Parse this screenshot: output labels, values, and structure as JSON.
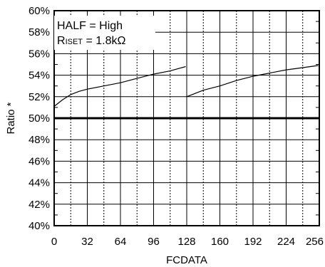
{
  "chart_data": {
    "type": "line",
    "xlabel": "FCDATA",
    "ylabel": "Ratio *",
    "xlim": [
      0,
      256
    ],
    "ylim": [
      40,
      60
    ],
    "x_ticks": [
      0,
      32,
      64,
      96,
      128,
      160,
      192,
      224,
      256
    ],
    "x_tick_labels": [
      "0",
      "32",
      "64",
      "96",
      "128",
      "160",
      "192",
      "224",
      "256"
    ],
    "x_minor_step": 16,
    "y_ticks": [
      40,
      42,
      44,
      46,
      48,
      50,
      52,
      54,
      56,
      58,
      60
    ],
    "y_tick_labels": [
      "40%",
      "42%",
      "44%",
      "46%",
      "48%",
      "50%",
      "52%",
      "54%",
      "56%",
      "58%",
      "60%"
    ],
    "y_minor_step": 1,
    "grid": true,
    "annotation": {
      "line1": "HALF = High",
      "line2_main": "R",
      "line2_sub": "ISET",
      "line2_rest": " = 1.8kΩ"
    },
    "reference_line": {
      "y": 50
    },
    "series": [
      {
        "points": [
          [
            0,
            51.1
          ],
          [
            8,
            51.7
          ],
          [
            16,
            52.2
          ],
          [
            24,
            52.5
          ],
          [
            32,
            52.7
          ],
          [
            48,
            53.0
          ],
          [
            64,
            53.3
          ],
          [
            80,
            53.7
          ],
          [
            96,
            54.1
          ],
          [
            112,
            54.4
          ],
          [
            127,
            54.8
          ]
        ]
      },
      {
        "points": [
          [
            128,
            52.0
          ],
          [
            144,
            52.6
          ],
          [
            160,
            53.0
          ],
          [
            176,
            53.5
          ],
          [
            192,
            53.9
          ],
          [
            208,
            54.2
          ],
          [
            224,
            54.5
          ],
          [
            240,
            54.7
          ],
          [
            255,
            54.9
          ]
        ]
      }
    ]
  }
}
